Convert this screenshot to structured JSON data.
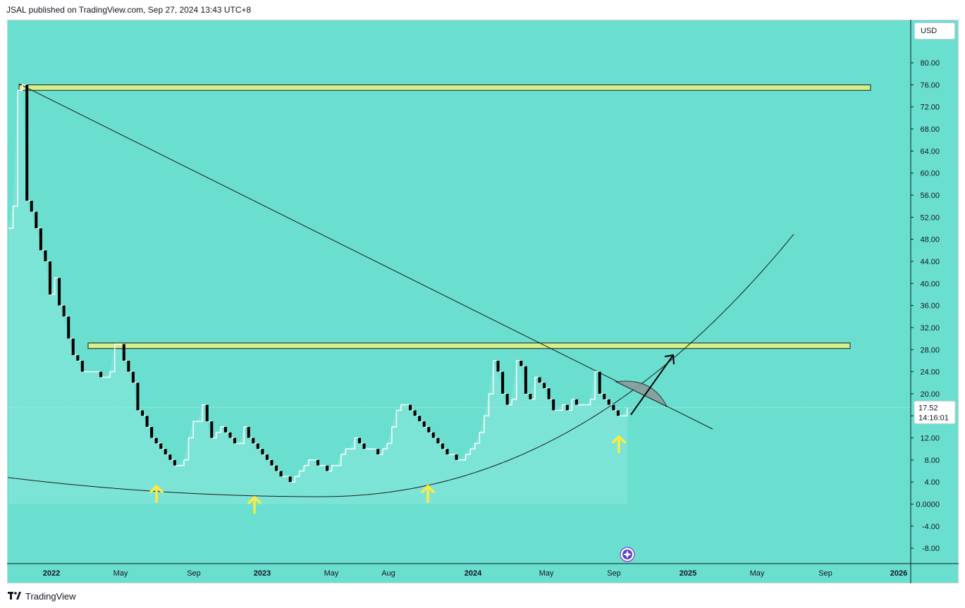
{
  "header": {
    "published_text": "JSAL published on TradingView.com, Sep 27, 2024 13:43 UTC+8"
  },
  "currency_button": {
    "label": "USD"
  },
  "footer": {
    "brand": "TradingView"
  },
  "price_label": {
    "value": "17.52",
    "countdown": "14:16:01"
  },
  "colors": {
    "background": "#6bdfcf",
    "bear_candle": "#000000",
    "bull_candle_outline": "#ffffff",
    "resistance_band": "#d4f08a",
    "arrow_yellow": "#ffeb3b",
    "trend_line": "#1b1b1b",
    "wedge_fill": "#8a9a9a"
  },
  "chart_data": {
    "type": "candlestick",
    "title": "",
    "y_axis": {
      "ticks": [
        "80.00",
        "76.00",
        "72.00",
        "68.00",
        "64.00",
        "60.00",
        "56.00",
        "52.00",
        "48.00",
        "44.00",
        "40.00",
        "36.00",
        "32.00",
        "28.00",
        "24.00",
        "20.00",
        "16.00",
        "12.00",
        "8.00",
        "4.00",
        "0.0000",
        "-4.00",
        "-8.00"
      ],
      "range": [
        -10,
        84
      ]
    },
    "x_axis": {
      "ticks": [
        {
          "label": "2022",
          "bold": true
        },
        {
          "label": "May",
          "bold": false
        },
        {
          "label": "Sep",
          "bold": false
        },
        {
          "label": "2023",
          "bold": true
        },
        {
          "label": "May",
          "bold": false
        },
        {
          "label": "Aug",
          "bold": false
        },
        {
          "label": "2024",
          "bold": true
        },
        {
          "label": "May",
          "bold": false
        },
        {
          "label": "Sep",
          "bold": false
        },
        {
          "label": "2025",
          "bold": true
        },
        {
          "label": "May",
          "bold": false
        },
        {
          "label": "Sep",
          "bold": false
        },
        {
          "label": "2026",
          "bold": true
        }
      ]
    },
    "last_price": 17.52,
    "resistance_zones": [
      {
        "name": "upper",
        "price_low": 75,
        "price_high": 76
      },
      {
        "name": "lower",
        "price_low": 28.2,
        "price_high": 29.2
      }
    ],
    "support_arrows": [
      3.5,
      1.5,
      3.5,
      12.5
    ],
    "close_series": [
      50,
      54,
      75,
      76,
      55,
      53,
      50,
      46,
      44,
      38,
      41,
      36,
      34,
      30,
      27,
      26,
      24,
      24,
      24,
      24,
      23,
      23,
      24,
      29,
      29,
      26,
      24,
      22,
      17,
      16,
      14,
      12,
      11,
      10,
      9,
      8,
      7,
      7,
      8,
      12,
      15,
      15,
      18,
      15,
      12,
      13,
      14,
      13,
      12,
      11,
      11,
      14,
      12,
      11,
      10,
      9,
      8,
      7,
      6,
      5,
      5,
      4,
      5,
      6,
      7,
      8,
      8,
      7,
      7,
      6,
      7,
      7,
      9,
      10,
      10,
      12,
      11,
      10,
      10,
      10,
      9,
      10,
      11,
      14,
      17,
      18,
      18,
      17,
      16,
      15,
      14,
      13,
      12,
      11,
      10,
      9,
      9,
      8,
      8,
      9,
      10,
      11,
      13,
      16,
      20,
      26,
      24,
      20,
      18,
      19,
      26,
      25,
      20,
      19,
      23,
      22,
      21,
      19,
      17,
      17,
      18,
      17,
      19,
      18,
      18,
      18,
      19,
      24,
      20,
      19,
      18,
      17,
      16,
      16,
      17.52
    ],
    "projection_arrow": {
      "from": 16.2,
      "to": 27
    }
  }
}
